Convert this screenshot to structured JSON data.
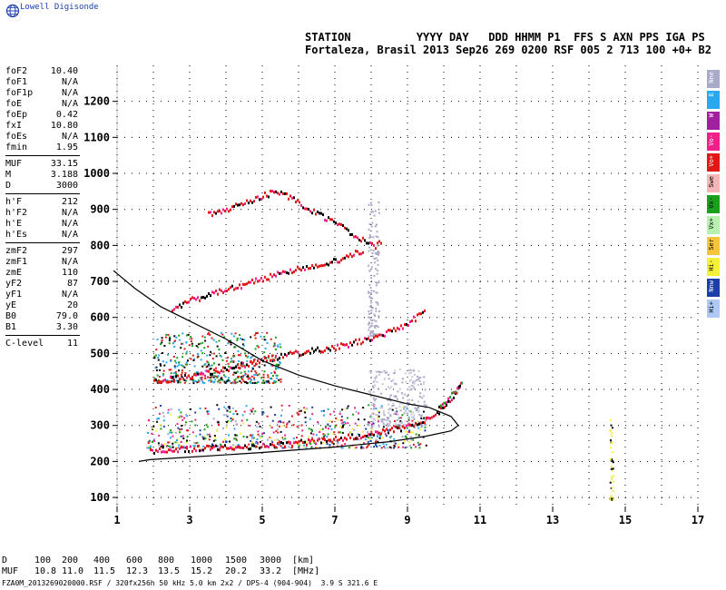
{
  "brand": "Lowell Digisonde",
  "header": {
    "line1": "STATION          YYYY DAY   DDD HHMM P1  FFS S AXN PPS IGA PS",
    "line2": "Fortaleza, Brasil 2013 Sep26 269 0200 RSF 005 2 713 100 +0+ B2"
  },
  "params": [
    [
      {
        "k": "foF2",
        "v": "10.40"
      },
      {
        "k": "foF1",
        "v": "N/A"
      },
      {
        "k": "foF1p",
        "v": "N/A"
      },
      {
        "k": "foE",
        "v": "N/A"
      },
      {
        "k": "foEp",
        "v": "0.42"
      },
      {
        "k": "fxI",
        "v": "10.80"
      },
      {
        "k": "foEs",
        "v": "N/A"
      },
      {
        "k": "fmin",
        "v": "1.95"
      }
    ],
    [
      {
        "k": "MUF",
        "v": "33.15"
      },
      {
        "k": "M",
        "v": "3.188"
      },
      {
        "k": "D",
        "v": "3000"
      }
    ],
    [
      {
        "k": "h'F",
        "v": "212"
      },
      {
        "k": "h'F2",
        "v": "N/A"
      },
      {
        "k": "h'E",
        "v": "N/A"
      },
      {
        "k": "h'Es",
        "v": "N/A"
      }
    ],
    [
      {
        "k": "zmF2",
        "v": "297"
      },
      {
        "k": "zmF1",
        "v": "N/A"
      },
      {
        "k": "zmE",
        "v": "110"
      },
      {
        "k": "yF2",
        "v": "87"
      },
      {
        "k": "yF1",
        "v": "N/A"
      },
      {
        "k": "yE",
        "v": "20"
      },
      {
        "k": "B0",
        "v": "79.0"
      },
      {
        "k": "B1",
        "v": "3.30"
      }
    ],
    [
      {
        "k": "C-level",
        "v": "11"
      }
    ]
  ],
  "legend": [
    {
      "label": "Nne",
      "color": "#a9a9c8"
    },
    {
      "label": "E",
      "color": "#29a8f0"
    },
    {
      "label": "W",
      "color": "#a0209f"
    },
    {
      "label": "Vo-",
      "color": "#f0208a"
    },
    {
      "label": "Vo+",
      "color": "#e01818"
    },
    {
      "label": "Swe",
      "color": "#f4b6b6"
    },
    {
      "label": "Vx-",
      "color": "#1aa01a"
    },
    {
      "label": "Vx+",
      "color": "#b8f0b0"
    },
    {
      "label": "Ser",
      "color": "#f4c43a"
    },
    {
      "label": "Hi-",
      "color": "#f4f03a"
    },
    {
      "label": "Nnw",
      "color": "#1c3ea8"
    },
    {
      "label": "Hi+",
      "color": "#b0c8f4"
    }
  ],
  "chart_data": {
    "type": "scatter",
    "xlim": [
      1,
      17
    ],
    "ylim": [
      80,
      1300
    ],
    "x_ticks": [
      "1",
      "3",
      "5",
      "7",
      "9",
      "11",
      "13",
      "15",
      "17"
    ],
    "y_ticks": [
      "100",
      "200",
      "300",
      "400",
      "500",
      "600",
      "700",
      "800",
      "900",
      "1000",
      "1100",
      "1200"
    ],
    "xlabel": "",
    "ylabel": "",
    "grid": "dotted",
    "profile_curve": [
      [
        0.9,
        730
      ],
      [
        1.5,
        680
      ],
      [
        2.2,
        630
      ],
      [
        3,
        590
      ],
      [
        4,
        540
      ],
      [
        5,
        480
      ],
      [
        6,
        440
      ],
      [
        7,
        410
      ],
      [
        8,
        385
      ],
      [
        9,
        360
      ],
      [
        9.6,
        350
      ],
      [
        10.2,
        325
      ],
      [
        10.4,
        300
      ],
      [
        10.2,
        285
      ],
      [
        9.5,
        270
      ],
      [
        8.5,
        255
      ],
      [
        7,
        240
      ],
      [
        5,
        225
      ],
      [
        3,
        212
      ],
      [
        1.9,
        205
      ],
      [
        1.6,
        200
      ]
    ],
    "traces": [
      {
        "name": "O-trace F2",
        "color": "#e01818",
        "points": [
          [
            1.9,
            230
          ],
          [
            2.5,
            235
          ],
          [
            3,
            238
          ],
          [
            4,
            242
          ],
          [
            5,
            248
          ],
          [
            6,
            255
          ],
          [
            7,
            265
          ],
          [
            8,
            280
          ],
          [
            8.8,
            295
          ],
          [
            9.4,
            312
          ],
          [
            9.8,
            335
          ],
          [
            10.1,
            365
          ],
          [
            10.3,
            395
          ],
          [
            10.45,
            420
          ]
        ]
      },
      {
        "name": "X-trace F2",
        "color": "#1aa01a",
        "points": [
          [
            9.8,
            345
          ],
          [
            10.0,
            365
          ],
          [
            10.2,
            390
          ],
          [
            10.4,
            410
          ],
          [
            10.5,
            425
          ]
        ]
      },
      {
        "name": "2F",
        "color": "#e01818",
        "points": [
          [
            2,
            425
          ],
          [
            3,
            440
          ],
          [
            4,
            460
          ],
          [
            5,
            485
          ],
          [
            6,
            505
          ],
          [
            7,
            520
          ],
          [
            8,
            545
          ],
          [
            8.8,
            575
          ],
          [
            9.5,
            620
          ]
        ]
      },
      {
        "name": "3F",
        "color": "#e01818",
        "points": [
          [
            2.5,
            620
          ],
          [
            3,
            650
          ],
          [
            4,
            680
          ],
          [
            5,
            710
          ],
          [
            6,
            740
          ],
          [
            7,
            760
          ],
          [
            7.8,
            790
          ]
        ]
      },
      {
        "name": "4F",
        "color": "#e01818",
        "points": [
          [
            3.5,
            890
          ],
          [
            4.2,
            910
          ],
          [
            4.7,
            930
          ],
          [
            5.4,
            955
          ],
          [
            8.1,
            800
          ],
          [
            8.3,
            815
          ]
        ]
      }
    ],
    "scatter_clusters": [
      {
        "x": [
          1.8,
          9.5
        ],
        "y": [
          240,
          360
        ],
        "colors": [
          "#a9a9c8",
          "#29a8f0",
          "#f0208a",
          "#1aa01a",
          "#e01818",
          "#1c3ea8",
          "#000000",
          "#f4f03a"
        ]
      },
      {
        "x": [
          7.9,
          9.5
        ],
        "y": [
          300,
          460
        ],
        "colors": [
          "#a9a9c8",
          "#c8c8dc"
        ]
      },
      {
        "x": [
          2,
          5.5
        ],
        "y": [
          420,
          560
        ],
        "colors": [
          "#e01818",
          "#000000",
          "#1aa01a",
          "#29a8f0"
        ]
      },
      {
        "x": [
          7.9,
          8.2
        ],
        "y": [
          550,
          930
        ],
        "colors": [
          "#a9a9c8"
        ]
      },
      {
        "x": [
          14.55,
          14.65
        ],
        "y": [
          95,
          340
        ],
        "colors": [
          "#000000",
          "#f4f03a"
        ]
      }
    ]
  },
  "footer": {
    "d_label": "D",
    "d_values": [
      "100",
      "200",
      "400",
      "600",
      "800",
      "1000",
      "1500",
      "3000",
      "[km]"
    ],
    "muf_label": "MUF",
    "muf_values": [
      "10.8",
      "11.0",
      "11.5",
      "12.3",
      "13.5",
      "15.2",
      "20.2",
      "33.2",
      "[MHz]"
    ],
    "filename": "FZA0M_2013269020000.RSF / 320fx256h 50 kHz 5.0 km 2x2 / DPS-4 (904-904)  3.9 S 321.6 E"
  }
}
